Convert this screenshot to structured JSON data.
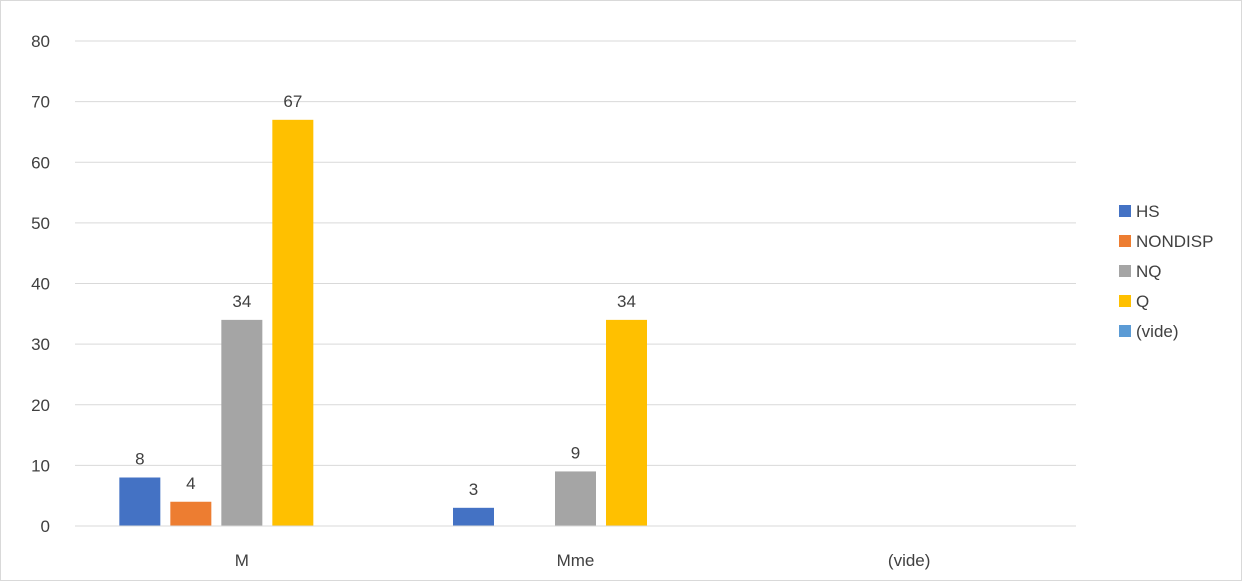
{
  "chart_data": {
    "type": "bar",
    "categories": [
      "M",
      "Mme",
      "(vide)"
    ],
    "series": [
      {
        "name": "HS",
        "color": "#4472C4",
        "values": [
          8,
          3,
          null
        ]
      },
      {
        "name": "NONDISP",
        "color": "#ED7D31",
        "values": [
          4,
          null,
          null
        ]
      },
      {
        "name": "NQ",
        "color": "#A5A5A5",
        "values": [
          34,
          9,
          null
        ]
      },
      {
        "name": "Q",
        "color": "#FFC000",
        "values": [
          67,
          34,
          null
        ]
      },
      {
        "name": "(vide)",
        "color": "#5B9BD5",
        "values": [
          null,
          null,
          null
        ]
      }
    ],
    "ylim": [
      0,
      80
    ],
    "yticks": [
      0,
      10,
      20,
      30,
      40,
      50,
      60,
      70,
      80
    ],
    "data_labels": true,
    "grid": true,
    "legend_position": "right"
  }
}
